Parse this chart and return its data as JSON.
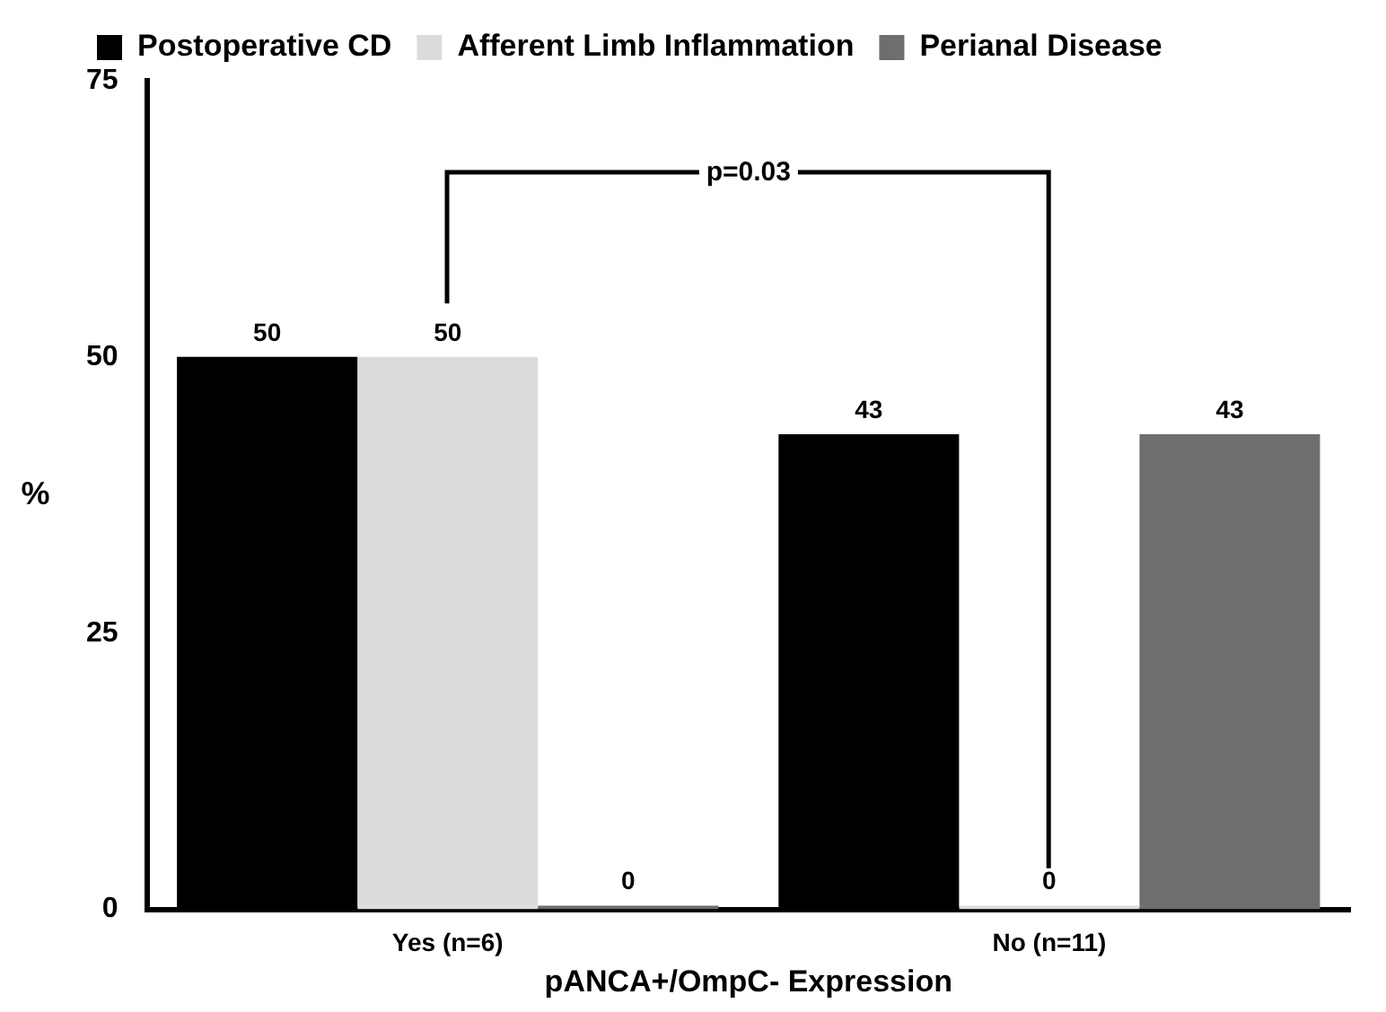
{
  "chart_data": {
    "type": "bar",
    "xlabel": "pANCA+/OmpC- Expression",
    "ylabel": "%",
    "categories": [
      "Yes (n=6)",
      "No (n=11)"
    ],
    "series": [
      {
        "name": "Postoperative CD",
        "color": "#000000",
        "values": [
          50,
          43
        ]
      },
      {
        "name": "Afferent Limb Inflammation",
        "color": "#dcdcdc",
        "values": [
          50,
          0
        ]
      },
      {
        "name": "Perianal Disease",
        "color": "#6e6e6e",
        "values": [
          0,
          43
        ]
      }
    ],
    "ylim": [
      0,
      75
    ],
    "yticks": [
      0,
      25,
      50,
      75
    ],
    "grid": false,
    "legend": "top",
    "data_labels": true,
    "annotations": [
      "p=0.03"
    ]
  }
}
